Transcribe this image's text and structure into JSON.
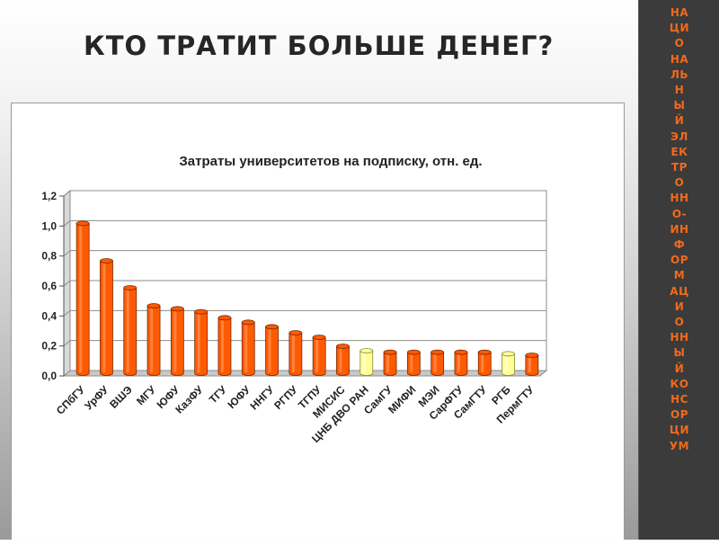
{
  "slide": {
    "title": "КТО ТРАТИТ БОЛЬШЕ ДЕНЕГ?",
    "side_banner_lines": [
      "НА",
      "ЦИ",
      "О",
      "НА",
      "ЛЬ",
      "Н",
      "Ы",
      "Й",
      "ЭЛ",
      "ЕК",
      "ТР",
      "О",
      "НН",
      "О-",
      "ИН",
      "Ф",
      "ОР",
      "М",
      "АЦ",
      "И",
      "О",
      "НН",
      "Ы",
      "Й",
      "КО",
      "НС",
      "ОР",
      "ЦИ",
      "УМ"
    ]
  },
  "colors": {
    "bar_default": "#ff5a00",
    "bar_highlight": "#ffff9a",
    "side_text": "#f06a1c",
    "side_bg": "#3b3b3b"
  },
  "chart_data": {
    "type": "bar",
    "title": "Затраты  университетов на подписку, отн. ед.",
    "categories": [
      "СПбГУ",
      "УрФУ",
      "ВШЭ",
      "МГУ",
      "ЮФУ",
      "КазФУ",
      "ТГУ",
      "ЮФУ",
      "ННГУ",
      "РГПУ",
      "ТГПУ",
      "МИСИС",
      "ЦНБ ДВО РАН",
      "СамГУ",
      "МИФИ",
      "МЭИ",
      "СарФТУ",
      "СамГТУ",
      "РГБ",
      "ПермГТУ"
    ],
    "values": [
      1.0,
      0.75,
      0.57,
      0.45,
      0.43,
      0.41,
      0.37,
      0.34,
      0.31,
      0.27,
      0.24,
      0.18,
      0.15,
      0.14,
      0.14,
      0.14,
      0.14,
      0.14,
      0.13,
      0.12
    ],
    "highlighted": [
      12,
      18
    ],
    "ylim": [
      0,
      1.2
    ],
    "yticks": [
      "0,0",
      "0,2",
      "0,4",
      "0,6",
      "0,8",
      "1,0",
      "1,2"
    ],
    "grid": true,
    "xlabel": "",
    "ylabel": ""
  }
}
